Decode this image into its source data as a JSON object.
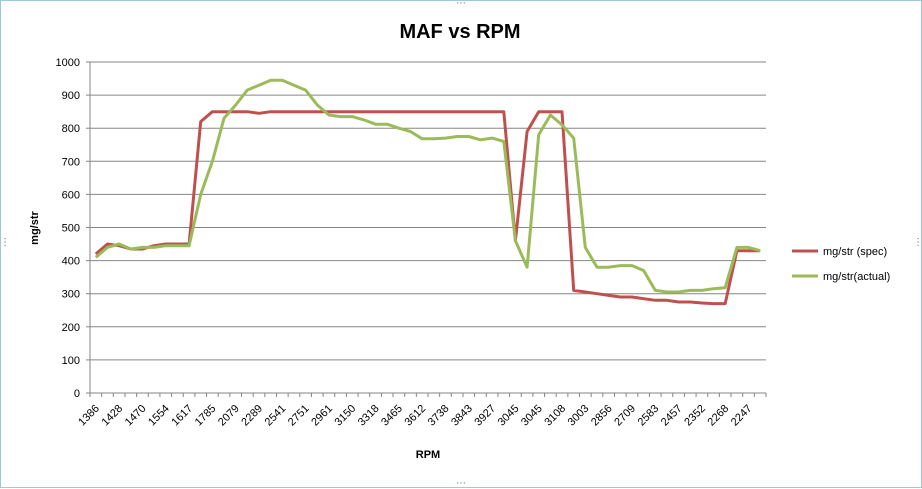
{
  "chart_data": {
    "type": "line",
    "title": "MAF vs RPM",
    "xlabel": "RPM",
    "ylabel": "mg/str",
    "ylim": [
      0,
      1000
    ],
    "yticks": [
      0,
      100,
      200,
      300,
      400,
      500,
      600,
      700,
      800,
      900,
      1000
    ],
    "grid": true,
    "legend_position": "right",
    "x_tick_labels": [
      "1386",
      "1428",
      "1470",
      "1554",
      "1617",
      "1785",
      "2079",
      "2289",
      "2541",
      "2751",
      "2961",
      "3150",
      "3318",
      "3465",
      "3612",
      "3738",
      "3843",
      "3927",
      "3045",
      "3045",
      "3108",
      "3003",
      "2856",
      "2709",
      "2583",
      "2457",
      "2352",
      "2268",
      "2247"
    ],
    "series": [
      {
        "name": "mg/str (spec)",
        "color": "#c0504d",
        "values": [
          420,
          450,
          445,
          435,
          435,
          445,
          450,
          450,
          450,
          820,
          850,
          850,
          850,
          850,
          845,
          850,
          850,
          850,
          850,
          850,
          850,
          850,
          850,
          850,
          850,
          850,
          850,
          850,
          850,
          850,
          850,
          850,
          850,
          850,
          850,
          850,
          460,
          790,
          850,
          850,
          850,
          310,
          305,
          300,
          295,
          290,
          290,
          285,
          280,
          280,
          275,
          275,
          272,
          270,
          270,
          430,
          430,
          430
        ]
      },
      {
        "name": "mg/str(actual)",
        "color": "#9bbb59",
        "values": [
          410,
          440,
          450,
          435,
          440,
          440,
          445,
          445,
          445,
          600,
          700,
          830,
          870,
          915,
          930,
          945,
          945,
          930,
          915,
          870,
          840,
          835,
          835,
          825,
          812,
          812,
          800,
          790,
          768,
          768,
          770,
          775,
          775,
          765,
          770,
          760,
          460,
          380,
          780,
          840,
          810,
          770,
          440,
          380,
          380,
          385,
          385,
          370,
          310,
          305,
          305,
          310,
          310,
          315,
          318,
          440,
          440,
          430
        ]
      }
    ]
  }
}
